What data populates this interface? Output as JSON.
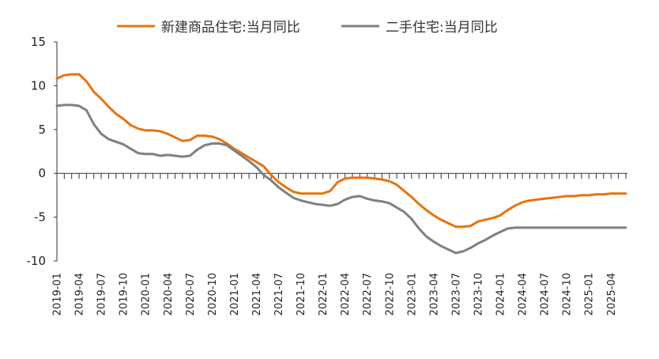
{
  "chart_data": {
    "type": "line",
    "title": "",
    "xlabel": "",
    "ylabel": "",
    "ylim": [
      -10,
      15
    ],
    "yticks": [
      15,
      10,
      5,
      0,
      -5,
      -10
    ],
    "ytick_labels": [
      "15",
      "10",
      "5",
      "0",
      "-5",
      "-10"
    ],
    "grid": false,
    "legend_position": "top-center",
    "x": [
      "2019-01",
      "2019-02",
      "2019-03",
      "2019-04",
      "2019-05",
      "2019-06",
      "2019-07",
      "2019-08",
      "2019-09",
      "2019-10",
      "2019-11",
      "2019-12",
      "2020-01",
      "2020-02",
      "2020-03",
      "2020-04",
      "2020-05",
      "2020-06",
      "2020-07",
      "2020-08",
      "2020-09",
      "2020-10",
      "2020-11",
      "2020-12",
      "2021-01",
      "2021-02",
      "2021-03",
      "2021-04",
      "2021-05",
      "2021-06",
      "2021-07",
      "2021-08",
      "2021-09",
      "2021-10",
      "2021-11",
      "2021-12",
      "2022-01",
      "2022-02",
      "2022-03",
      "2022-04",
      "2022-05",
      "2022-06",
      "2022-07",
      "2022-08",
      "2022-09",
      "2022-10",
      "2022-11",
      "2022-12",
      "2023-01",
      "2023-02",
      "2023-03",
      "2023-04",
      "2023-05",
      "2023-06",
      "2023-07",
      "2023-08",
      "2023-09",
      "2023-10",
      "2023-11",
      "2023-12",
      "2024-01",
      "2024-02",
      "2024-03",
      "2024-04",
      "2024-05",
      "2024-06",
      "2024-07",
      "2024-08",
      "2024-09",
      "2024-10",
      "2024-11",
      "2024-12",
      "2025-01",
      "2025-02",
      "2025-03",
      "2025-04",
      "2025-05",
      "2025-06"
    ],
    "xtick_labels": [
      "2019-01",
      "2019-04",
      "2019-07",
      "2019-10",
      "2020-01",
      "2020-04",
      "2020-07",
      "2020-10",
      "2021-01",
      "2021-04",
      "2021-07",
      "2021-10",
      "2022-01",
      "2022-04",
      "2022-07",
      "2022-10",
      "2023-01",
      "2023-04",
      "2023-07",
      "2023-10",
      "2024-01",
      "2024-04",
      "2024-07",
      "2024-10",
      "2025-01",
      "2025-04"
    ],
    "series": [
      {
        "name": "新建商品住宅:当月同比",
        "color": "#E8730E",
        "values": [
          10.8,
          11.2,
          11.3,
          11.3,
          10.5,
          9.3,
          8.5,
          7.6,
          6.8,
          6.2,
          5.5,
          5.1,
          4.9,
          4.9,
          4.8,
          4.5,
          4.1,
          3.7,
          3.8,
          4.3,
          4.3,
          4.2,
          3.9,
          3.4,
          2.8,
          2.3,
          1.8,
          1.3,
          0.8,
          -0.2,
          -1.0,
          -1.6,
          -2.1,
          -2.3,
          -2.3,
          -2.3,
          -2.3,
          -2.0,
          -1.0,
          -0.6,
          -0.5,
          -0.5,
          -0.5,
          -0.6,
          -0.7,
          -0.9,
          -1.3,
          -2.0,
          -2.7,
          -3.5,
          -4.2,
          -4.8,
          -5.3,
          -5.7,
          -6.1,
          -6.1,
          -6.0,
          -5.5,
          -5.3,
          -5.1,
          -4.8,
          -4.2,
          -3.7,
          -3.3,
          -3.1,
          -3.0,
          -2.9,
          -2.8,
          -2.7,
          -2.6,
          -2.6,
          -2.5,
          -2.5,
          -2.4,
          -2.4,
          -2.3,
          -2.3,
          -2.3
        ]
      },
      {
        "name": "二手住宅:当月同比",
        "color": "#808080",
        "values": [
          7.7,
          7.8,
          7.8,
          7.7,
          7.2,
          5.6,
          4.5,
          3.9,
          3.6,
          3.3,
          2.8,
          2.3,
          2.2,
          2.2,
          2.0,
          2.1,
          2.0,
          1.9,
          2.0,
          2.7,
          3.2,
          3.4,
          3.4,
          3.2,
          2.6,
          2.0,
          1.4,
          0.7,
          -0.2,
          -0.8,
          -1.6,
          -2.2,
          -2.8,
          -3.1,
          -3.3,
          -3.5,
          -3.6,
          -3.7,
          -3.5,
          -3.0,
          -2.7,
          -2.6,
          -2.9,
          -3.1,
          -3.2,
          -3.4,
          -3.9,
          -4.4,
          -5.2,
          -6.3,
          -7.2,
          -7.8,
          -8.3,
          -8.7,
          -9.1,
          -8.9,
          -8.5,
          -8.0,
          -7.6,
          -7.1,
          -6.7,
          -6.3,
          -6.2,
          -6.2,
          -6.2,
          -6.2,
          -6.2,
          -6.2,
          -6.2,
          -6.2,
          -6.2,
          -6.2,
          -6.2,
          -6.2,
          -6.2,
          -6.2,
          -6.2,
          -6.2
        ]
      }
    ]
  }
}
